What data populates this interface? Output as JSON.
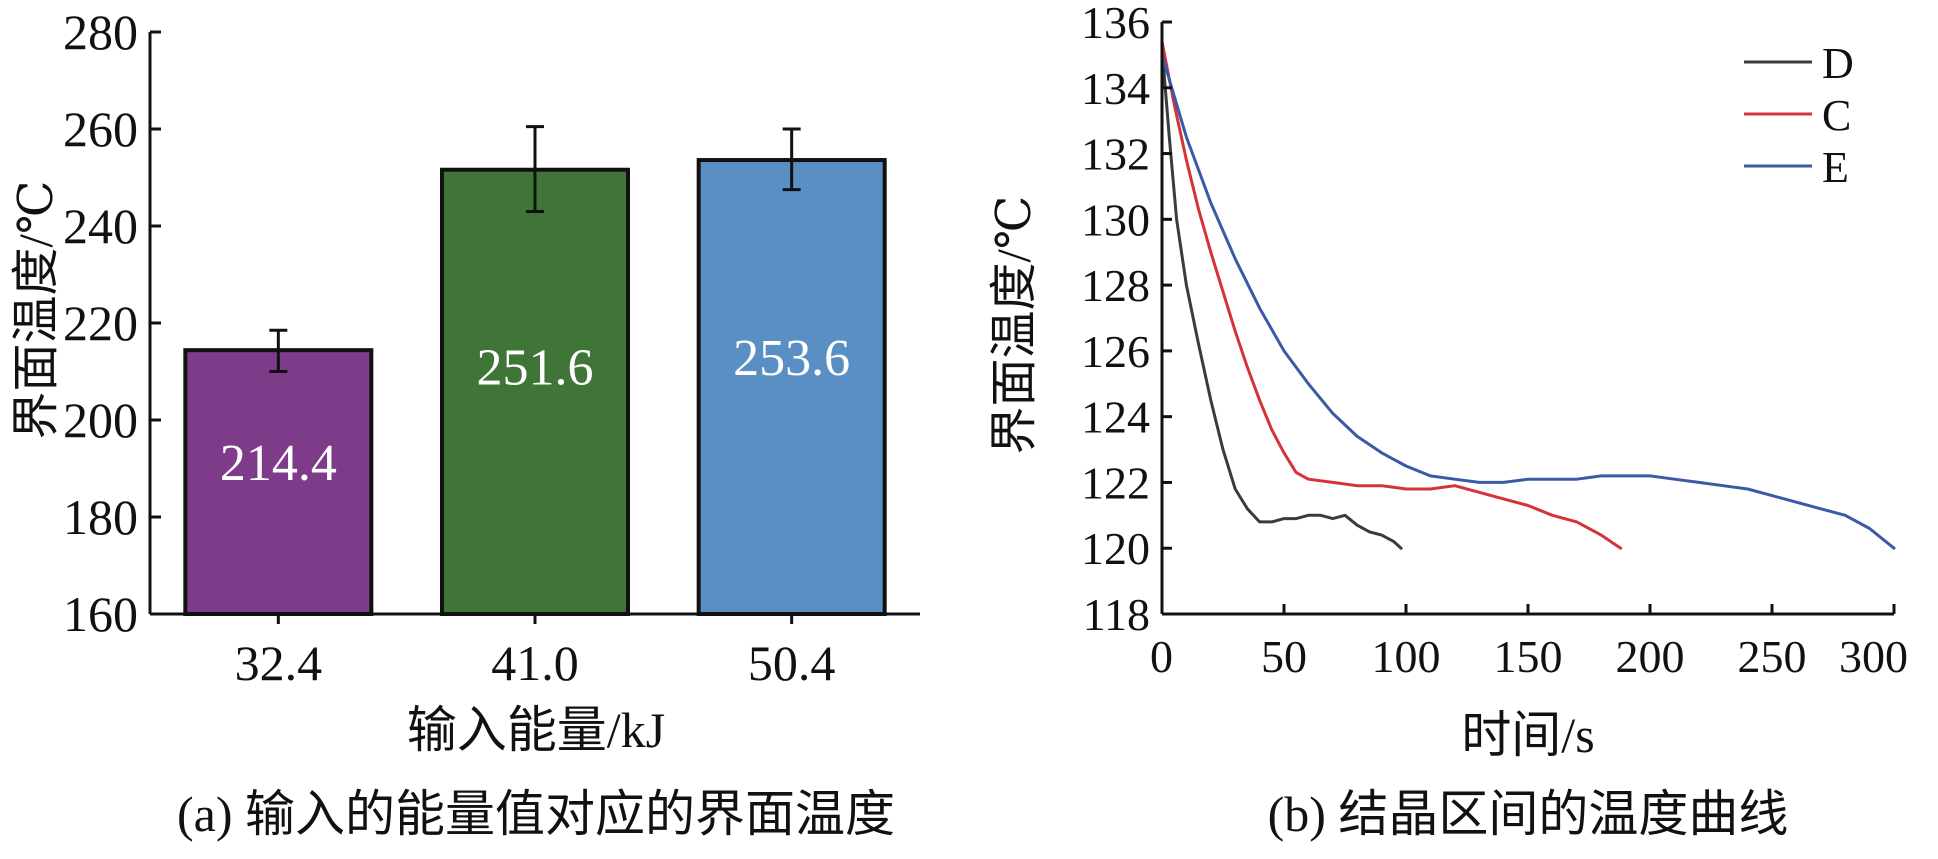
{
  "panel_a": {
    "caption": "(a) 输入的能量值对应的界面温度"
  },
  "panel_b": {
    "caption": "(b) 结晶区间的温度曲线"
  },
  "colors": {
    "bar_32_4": "#7d3b8a",
    "bar_41_0": "#3f7637",
    "bar_50_4": "#5a8fc3",
    "line_D": "#3b3b3b",
    "line_C": "#d6323a",
    "line_E": "#3b5aa6"
  },
  "chart_data": [
    {
      "type": "bar",
      "xlabel": "输入能量/kJ",
      "ylabel": "界面温度/℃",
      "ylim": [
        160,
        280
      ],
      "yticks": [
        160,
        180,
        200,
        220,
        240,
        260,
        280
      ],
      "categories": [
        "32.4",
        "41.0",
        "50.4"
      ],
      "values": [
        214.4,
        251.6,
        253.6
      ],
      "data_labels": [
        "214.4",
        "251.6",
        "253.6"
      ],
      "error_bars": [
        {
          "low": 210.0,
          "high": 218.5
        },
        {
          "low": 243.0,
          "high": 260.5
        },
        {
          "low": 247.5,
          "high": 260.0
        }
      ],
      "grid": false
    },
    {
      "type": "line",
      "xlabel": "时间/s",
      "ylabel": "界面温度/℃",
      "xlim": [
        0,
        300
      ],
      "ylim": [
        118,
        136
      ],
      "xticks": [
        0,
        50,
        100,
        150,
        200,
        250,
        300
      ],
      "yticks": [
        118,
        120,
        122,
        124,
        126,
        128,
        130,
        132,
        134,
        136
      ],
      "legend_position": "top-right",
      "grid": false,
      "series": [
        {
          "name": "D",
          "x": [
            0,
            3,
            6,
            10,
            15,
            20,
            25,
            30,
            35,
            40,
            45,
            50,
            55,
            60,
            65,
            70,
            75,
            80,
            85,
            90,
            95,
            98
          ],
          "y": [
            135.2,
            132.5,
            130.0,
            128.0,
            126.2,
            124.5,
            123.0,
            121.8,
            121.2,
            120.8,
            120.8,
            120.9,
            120.9,
            121.0,
            121.0,
            120.9,
            121.0,
            120.7,
            120.5,
            120.4,
            120.2,
            120.0
          ]
        },
        {
          "name": "C",
          "x": [
            0,
            5,
            10,
            15,
            20,
            25,
            30,
            35,
            40,
            45,
            50,
            55,
            60,
            70,
            80,
            90,
            100,
            110,
            120,
            130,
            140,
            150,
            160,
            170,
            180,
            188
          ],
          "y": [
            135.4,
            133.5,
            131.8,
            130.3,
            129.0,
            127.8,
            126.6,
            125.5,
            124.5,
            123.6,
            122.9,
            122.3,
            122.1,
            122.0,
            121.9,
            121.9,
            121.8,
            121.8,
            121.9,
            121.7,
            121.5,
            121.3,
            121.0,
            120.8,
            120.4,
            120.0
          ]
        },
        {
          "name": "E",
          "x": [
            0,
            10,
            20,
            30,
            40,
            50,
            60,
            70,
            80,
            90,
            100,
            110,
            120,
            130,
            140,
            150,
            160,
            170,
            180,
            190,
            200,
            210,
            220,
            230,
            240,
            250,
            260,
            270,
            280,
            290,
            300
          ],
          "y": [
            135.0,
            132.5,
            130.5,
            128.8,
            127.3,
            126.0,
            125.0,
            124.1,
            123.4,
            122.9,
            122.5,
            122.2,
            122.1,
            122.0,
            122.0,
            122.1,
            122.1,
            122.1,
            122.2,
            122.2,
            122.2,
            122.1,
            122.0,
            121.9,
            121.8,
            121.6,
            121.4,
            121.2,
            121.0,
            120.6,
            120.0
          ]
        }
      ]
    }
  ]
}
